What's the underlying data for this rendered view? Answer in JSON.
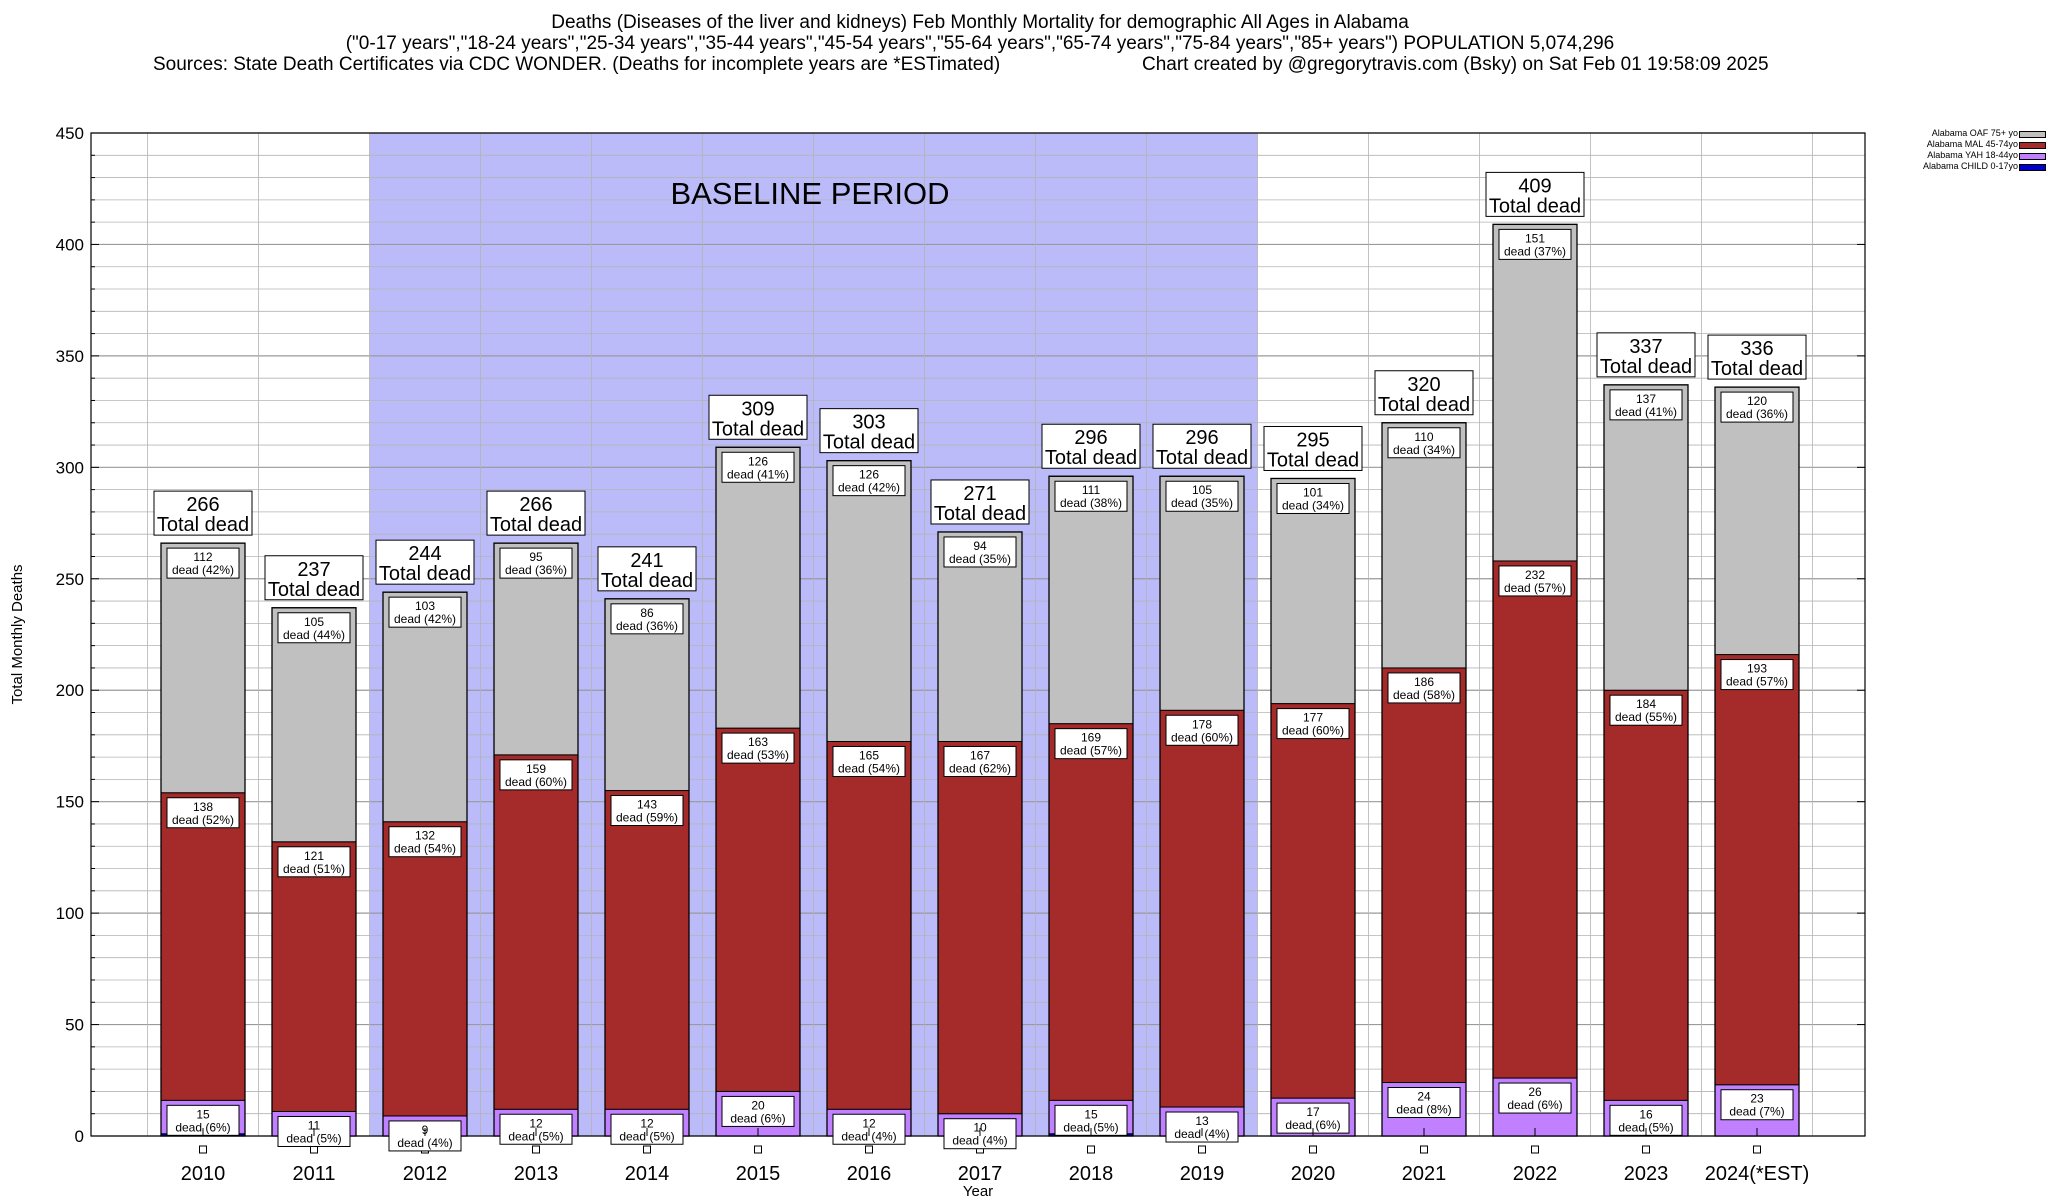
{
  "header": {
    "title": "Deaths (Diseases of the liver and kidneys) Feb Monthly Mortality for demographic All Ages in Alabama",
    "subtitle": "(\"0-17 years\",\"18-24 years\",\"25-34 years\",\"35-44 years\",\"45-54 years\",\"55-64 years\",\"65-74 years\",\"75-84 years\",\"85+ years\") POPULATION 5,074,296",
    "sources": "Sources: State Death Certificates via CDC WONDER. (Deaths for incomplete years are *ESTimated)",
    "created": "Chart created by @gregorytravis.com (Bsky) on Sat Feb 01 19:58:09 2025"
  },
  "chart_data": {
    "type": "bar",
    "stacked": true,
    "xlabel": "Year",
    "ylabel": "Total Monthly Deaths",
    "ylim": [
      0,
      450
    ],
    "yticks": [
      0,
      50,
      100,
      150,
      200,
      250,
      300,
      350,
      400,
      450
    ],
    "grid": true,
    "legend_position": "top-right",
    "baseline_label": "BASELINE PERIOD",
    "baseline_categories": [
      "2012",
      "2019"
    ],
    "total_suffix": "Total dead",
    "segment_prefix": "dead",
    "categories": [
      "2010",
      "2011",
      "2012",
      "2013",
      "2014",
      "2015",
      "2016",
      "2017",
      "2018",
      "2019",
      "2020",
      "2021",
      "2022",
      "2023",
      "2024(*EST)"
    ],
    "totals": [
      266,
      237,
      244,
      266,
      241,
      309,
      303,
      271,
      296,
      296,
      295,
      320,
      409,
      337,
      336
    ],
    "series": [
      {
        "name": "Alabama CHILD 0-17yo",
        "color": "#0000c8",
        "values": [
          1,
          0,
          0,
          0,
          0,
          0,
          0,
          0,
          1,
          0,
          0,
          0,
          0,
          0,
          0
        ]
      },
      {
        "name": "Alabama YAH 18-44yo",
        "color": "#c080ff",
        "values": [
          15,
          11,
          9,
          12,
          12,
          20,
          12,
          10,
          15,
          13,
          17,
          24,
          26,
          16,
          23
        ],
        "percents": [
          "6%",
          "5%",
          "4%",
          "5%",
          "5%",
          "6%",
          "4%",
          "4%",
          "5%",
          "4%",
          "6%",
          "8%",
          "6%",
          "5%",
          "7%"
        ]
      },
      {
        "name": "Alabama MAL 45-74yo",
        "color": "#a52a2a",
        "values": [
          138,
          121,
          132,
          159,
          143,
          163,
          165,
          167,
          169,
          178,
          177,
          186,
          232,
          184,
          193
        ],
        "percents": [
          "52%",
          "51%",
          "54%",
          "60%",
          "59%",
          "53%",
          "54%",
          "62%",
          "57%",
          "60%",
          "60%",
          "58%",
          "57%",
          "55%",
          "57%"
        ]
      },
      {
        "name": "Alabama OAF 75+ yo",
        "color": "#c0c0c0",
        "values": [
          112,
          105,
          103,
          95,
          86,
          126,
          126,
          94,
          111,
          105,
          101,
          110,
          151,
          137,
          120
        ],
        "percents": [
          "42%",
          "44%",
          "42%",
          "36%",
          "36%",
          "41%",
          "42%",
          "35%",
          "38%",
          "35%",
          "34%",
          "34%",
          "37%",
          "41%",
          "36%"
        ]
      }
    ],
    "legend": [
      "Alabama OAF 75+ yo",
      "Alabama MAL 45-74yo",
      "Alabama YAH 18-44yo",
      "Alabama CHILD 0-17yo"
    ],
    "colors": {
      "baseline": "#bbbbfa",
      "grid": "#b4b4b4"
    }
  }
}
